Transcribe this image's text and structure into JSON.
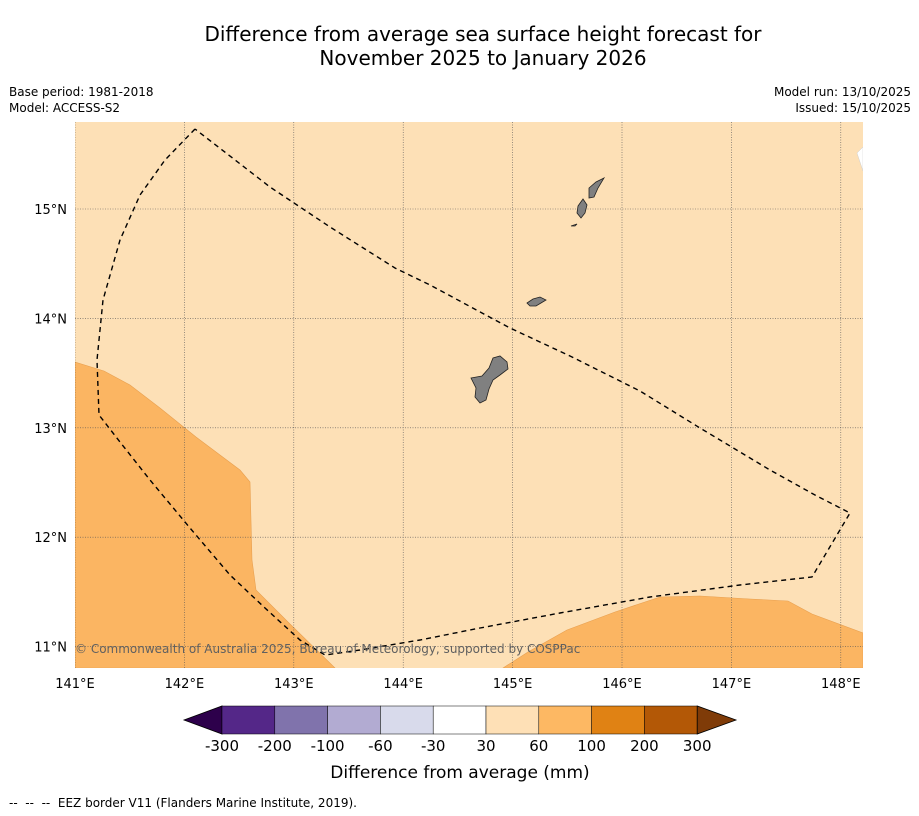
{
  "title": {
    "line1": "Difference from average sea surface height forecast for",
    "line2": "November 2025 to January 2026"
  },
  "meta_left": {
    "base_period": "Base period: 1981-2018",
    "model": "Model: ACCESS-S2"
  },
  "meta_right": {
    "model_run": "Model run: 13/10/2025",
    "issued": "Issued: 15/10/2025"
  },
  "map": {
    "lat_ticks": [
      "15°N",
      "14°N",
      "13°N",
      "12°N",
      "11°N"
    ],
    "lon_ticks": [
      "141°E",
      "142°E",
      "143°E",
      "144°E",
      "145°E",
      "146°E",
      "147°E",
      "148°E"
    ],
    "copyright": "© Commonwealth of Australia 2025, Bureau of Meteorology, supported by COSPPac",
    "colors": {
      "ocean_30_60": "#fde0b6",
      "ocean_60_100": "#fbb562",
      "land": "#808080",
      "eez_line": "#000000"
    }
  },
  "colorbar": {
    "title": "Difference from average (mm)",
    "labels": [
      "-300",
      "-200",
      "-100",
      "-60",
      "-30",
      "30",
      "60",
      "100",
      "200",
      "300"
    ],
    "colors": [
      "#2d004b",
      "#542788",
      "#8073ac",
      "#b2abd2",
      "#d8daeb",
      "#ffffff",
      "#fee0b6",
      "#fdb863",
      "#e08214",
      "#b35806",
      "#7f3b08"
    ]
  },
  "footer": {
    "legend_symbol": "--  --  --",
    "legend_text": "EEZ border V11 (Flanders Marine Institute, 2019)."
  }
}
